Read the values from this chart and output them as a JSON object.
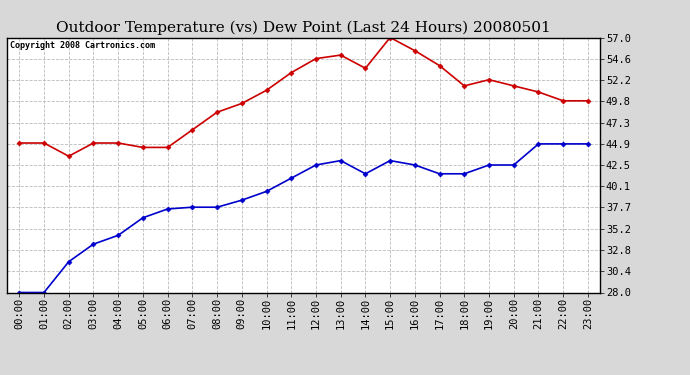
{
  "title": "Outdoor Temperature (vs) Dew Point (Last 24 Hours) 20080501",
  "copyright": "Copyright 2008 Cartronics.com",
  "x_labels": [
    "00:00",
    "01:00",
    "02:00",
    "03:00",
    "04:00",
    "05:00",
    "06:00",
    "07:00",
    "08:00",
    "09:00",
    "10:00",
    "11:00",
    "12:00",
    "13:00",
    "14:00",
    "15:00",
    "16:00",
    "17:00",
    "18:00",
    "19:00",
    "20:00",
    "21:00",
    "22:00",
    "23:00"
  ],
  "temp_data": [
    45.0,
    45.0,
    43.5,
    45.0,
    45.0,
    44.5,
    44.5,
    46.5,
    48.5,
    49.5,
    51.0,
    53.0,
    54.6,
    55.0,
    53.5,
    57.0,
    55.5,
    53.8,
    51.5,
    52.2,
    51.5,
    50.8,
    49.8,
    49.8
  ],
  "dew_data": [
    28.0,
    28.0,
    31.5,
    33.5,
    34.5,
    36.5,
    37.5,
    37.7,
    37.7,
    38.5,
    39.5,
    41.0,
    42.5,
    43.0,
    41.5,
    43.0,
    42.5,
    41.5,
    41.5,
    42.5,
    42.5,
    44.9,
    44.9,
    44.9
  ],
  "temp_color": "#cc0000",
  "dew_color": "#0000cc",
  "bg_color": "#d8d8d8",
  "plot_bg_color": "#ffffff",
  "grid_color": "#bbbbbb",
  "ylim_min": 28.0,
  "ylim_max": 57.0,
  "yticks": [
    28.0,
    30.4,
    32.8,
    35.2,
    37.7,
    40.1,
    42.5,
    44.9,
    47.3,
    49.8,
    52.2,
    54.6,
    57.0
  ],
  "title_fontsize": 11,
  "copyright_fontsize": 6,
  "tick_fontsize": 7.5,
  "marker": "D",
  "marker_size": 2.5,
  "line_width": 1.2
}
